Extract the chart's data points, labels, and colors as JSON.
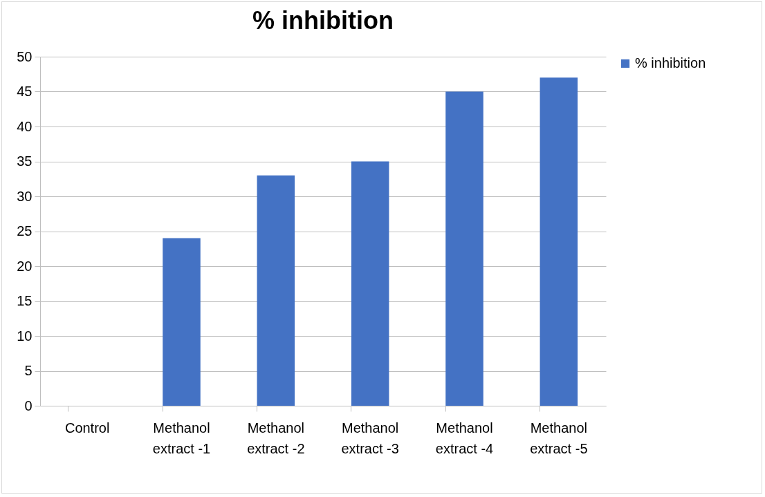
{
  "chart_data": {
    "type": "bar",
    "title": "% inhibition",
    "categories": [
      "Control",
      "Methanol extract -1",
      "Methanol extract -2",
      "Methanol extract -3",
      "Methanol extract -4",
      "Methanol extract -5"
    ],
    "series": [
      {
        "name": "% inhibition",
        "color": "#4472c4",
        "values": [
          0,
          24,
          33,
          35,
          45,
          47
        ]
      }
    ],
    "ylim": [
      0,
      50
    ],
    "yticks": [
      0,
      5,
      10,
      15,
      20,
      25,
      30,
      35,
      40,
      45,
      50
    ],
    "grid": "y",
    "legend": "right"
  }
}
